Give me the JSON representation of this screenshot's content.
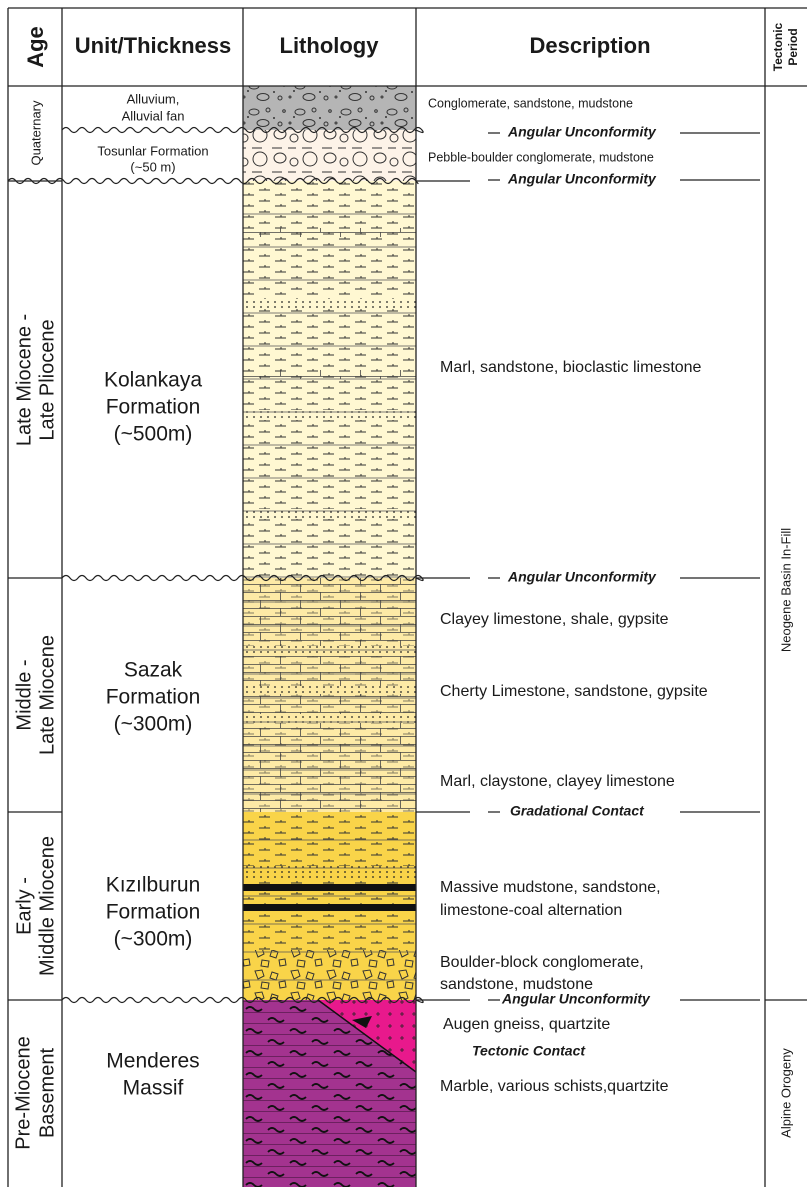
{
  "header": {
    "age": "Age",
    "unit": "Unit/Thickness",
    "lithology": "Lithology",
    "description": "Description",
    "tectonic": [
      "Tectonic",
      "Period"
    ]
  },
  "ages": [
    {
      "lines": [
        "Quaternary"
      ]
    },
    {
      "lines": [
        "Late Miocene -",
        "Late Pliocene"
      ]
    },
    {
      "lines": [
        "Middle -",
        "Late Miocene"
      ]
    },
    {
      "lines": [
        "Early -",
        "Middle Miocene"
      ]
    },
    {
      "lines": [
        "Pre-Miocene",
        "Basement"
      ]
    }
  ],
  "units": [
    {
      "lines": [
        "Alluvium,",
        "Alluvial fan"
      ]
    },
    {
      "lines": [
        "Tosunlar Formation",
        "(~50 m)"
      ]
    },
    {
      "lines": [
        "Kolankaya",
        "Formation",
        "(~500m)"
      ]
    },
    {
      "lines": [
        "Sazak",
        "Formation",
        "(~300m)"
      ]
    },
    {
      "lines": [
        "Kızılburun",
        "Formation",
        "(~300m)"
      ]
    },
    {
      "lines": [
        "Menderes",
        "Massif"
      ]
    }
  ],
  "descriptions": [
    {
      "lines": [
        "Conglomerate, sandstone, mudstone"
      ]
    },
    {
      "lines": [
        "Pebble-boulder conglomerate, mudstone"
      ]
    },
    {
      "lines": [
        "Marl, sandstone, bioclastic limestone"
      ]
    },
    {
      "lines": [
        "Clayey limestone, shale, gypsite"
      ]
    },
    {
      "lines": [
        "Cherty Limestone, sandstone, gypsite"
      ]
    },
    {
      "lines": [
        "Marl, claystone, clayey limestone"
      ]
    },
    {
      "lines": [
        "Massive mudstone, sandstone,",
        "limestone-coal alternation"
      ]
    },
    {
      "lines": [
        "Boulder-block conglomerate,",
        "sandstone, mudstone"
      ]
    },
    {
      "lines": [
        "Augen gneiss, quartzite"
      ]
    },
    {
      "lines": [
        "Marble, various schists,quartzite"
      ]
    }
  ],
  "contacts": [
    "Angular Unconformity",
    "Angular Unconformity",
    "Angular Unconformity",
    "Gradational Contact",
    "Angular Unconformity",
    "Tectonic Contact"
  ],
  "tectonic_periods": [
    "Neogene Basin In-Fill",
    "Alpine Orogeny"
  ]
}
